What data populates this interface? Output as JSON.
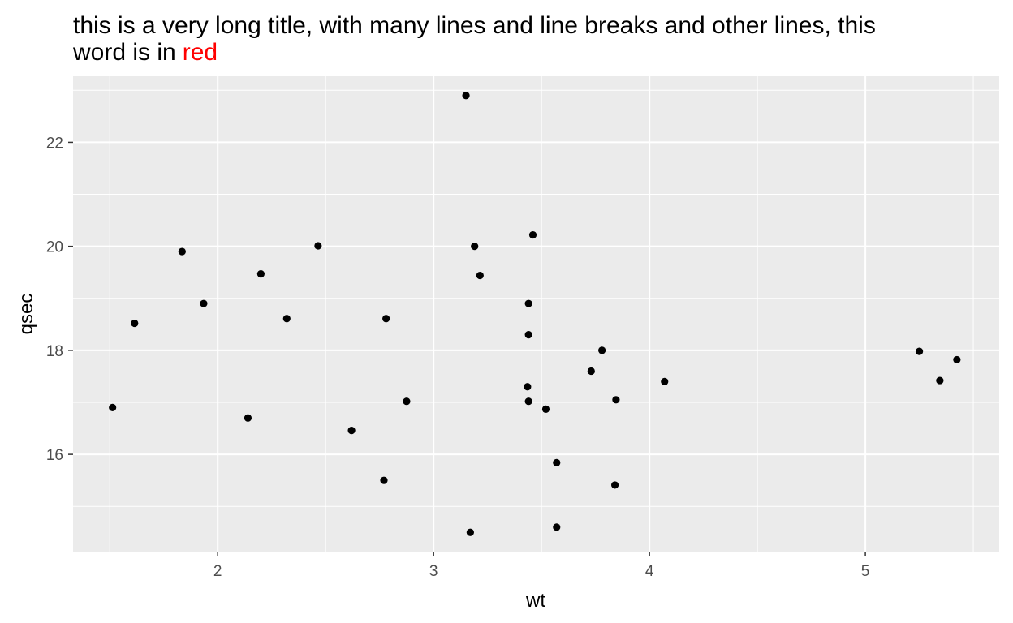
{
  "chart_data": {
    "type": "scatter",
    "title": {
      "line1": "this is a very long title, with many lines and line breaks and other lines, this",
      "line2_prefix": "word is in",
      "line2_highlight": "red",
      "highlight_color": "#ff0000"
    },
    "xlabel": "wt",
    "ylabel": "qsec",
    "xlim": [
      1.33,
      5.62
    ],
    "ylim": [
      14.13,
      23.27
    ],
    "x_ticks": [
      2,
      3,
      4,
      5
    ],
    "y_ticks": [
      16,
      18,
      20,
      22
    ],
    "grid": true,
    "panel_color": "#ebebeb",
    "point_color": "#000000",
    "points": [
      {
        "x": 1.513,
        "y": 16.9
      },
      {
        "x": 1.615,
        "y": 18.52
      },
      {
        "x": 1.835,
        "y": 19.9
      },
      {
        "x": 1.935,
        "y": 18.9
      },
      {
        "x": 2.14,
        "y": 16.7
      },
      {
        "x": 2.2,
        "y": 19.47
      },
      {
        "x": 2.32,
        "y": 18.61
      },
      {
        "x": 2.465,
        "y": 20.01
      },
      {
        "x": 2.62,
        "y": 16.46
      },
      {
        "x": 2.77,
        "y": 15.5
      },
      {
        "x": 2.78,
        "y": 18.61
      },
      {
        "x": 2.875,
        "y": 17.02
      },
      {
        "x": 3.15,
        "y": 22.9
      },
      {
        "x": 3.17,
        "y": 14.5
      },
      {
        "x": 3.19,
        "y": 20.0
      },
      {
        "x": 3.215,
        "y": 19.44
      },
      {
        "x": 3.435,
        "y": 17.3
      },
      {
        "x": 3.44,
        "y": 17.02
      },
      {
        "x": 3.44,
        "y": 18.3
      },
      {
        "x": 3.44,
        "y": 18.9
      },
      {
        "x": 3.46,
        "y": 20.22
      },
      {
        "x": 3.52,
        "y": 16.87
      },
      {
        "x": 3.57,
        "y": 15.84
      },
      {
        "x": 3.57,
        "y": 14.6
      },
      {
        "x": 3.73,
        "y": 17.6
      },
      {
        "x": 3.78,
        "y": 18.0
      },
      {
        "x": 3.84,
        "y": 15.41
      },
      {
        "x": 3.845,
        "y": 17.05
      },
      {
        "x": 4.07,
        "y": 17.4
      },
      {
        "x": 5.25,
        "y": 17.98
      },
      {
        "x": 5.345,
        "y": 17.42
      },
      {
        "x": 5.424,
        "y": 17.82
      }
    ]
  }
}
